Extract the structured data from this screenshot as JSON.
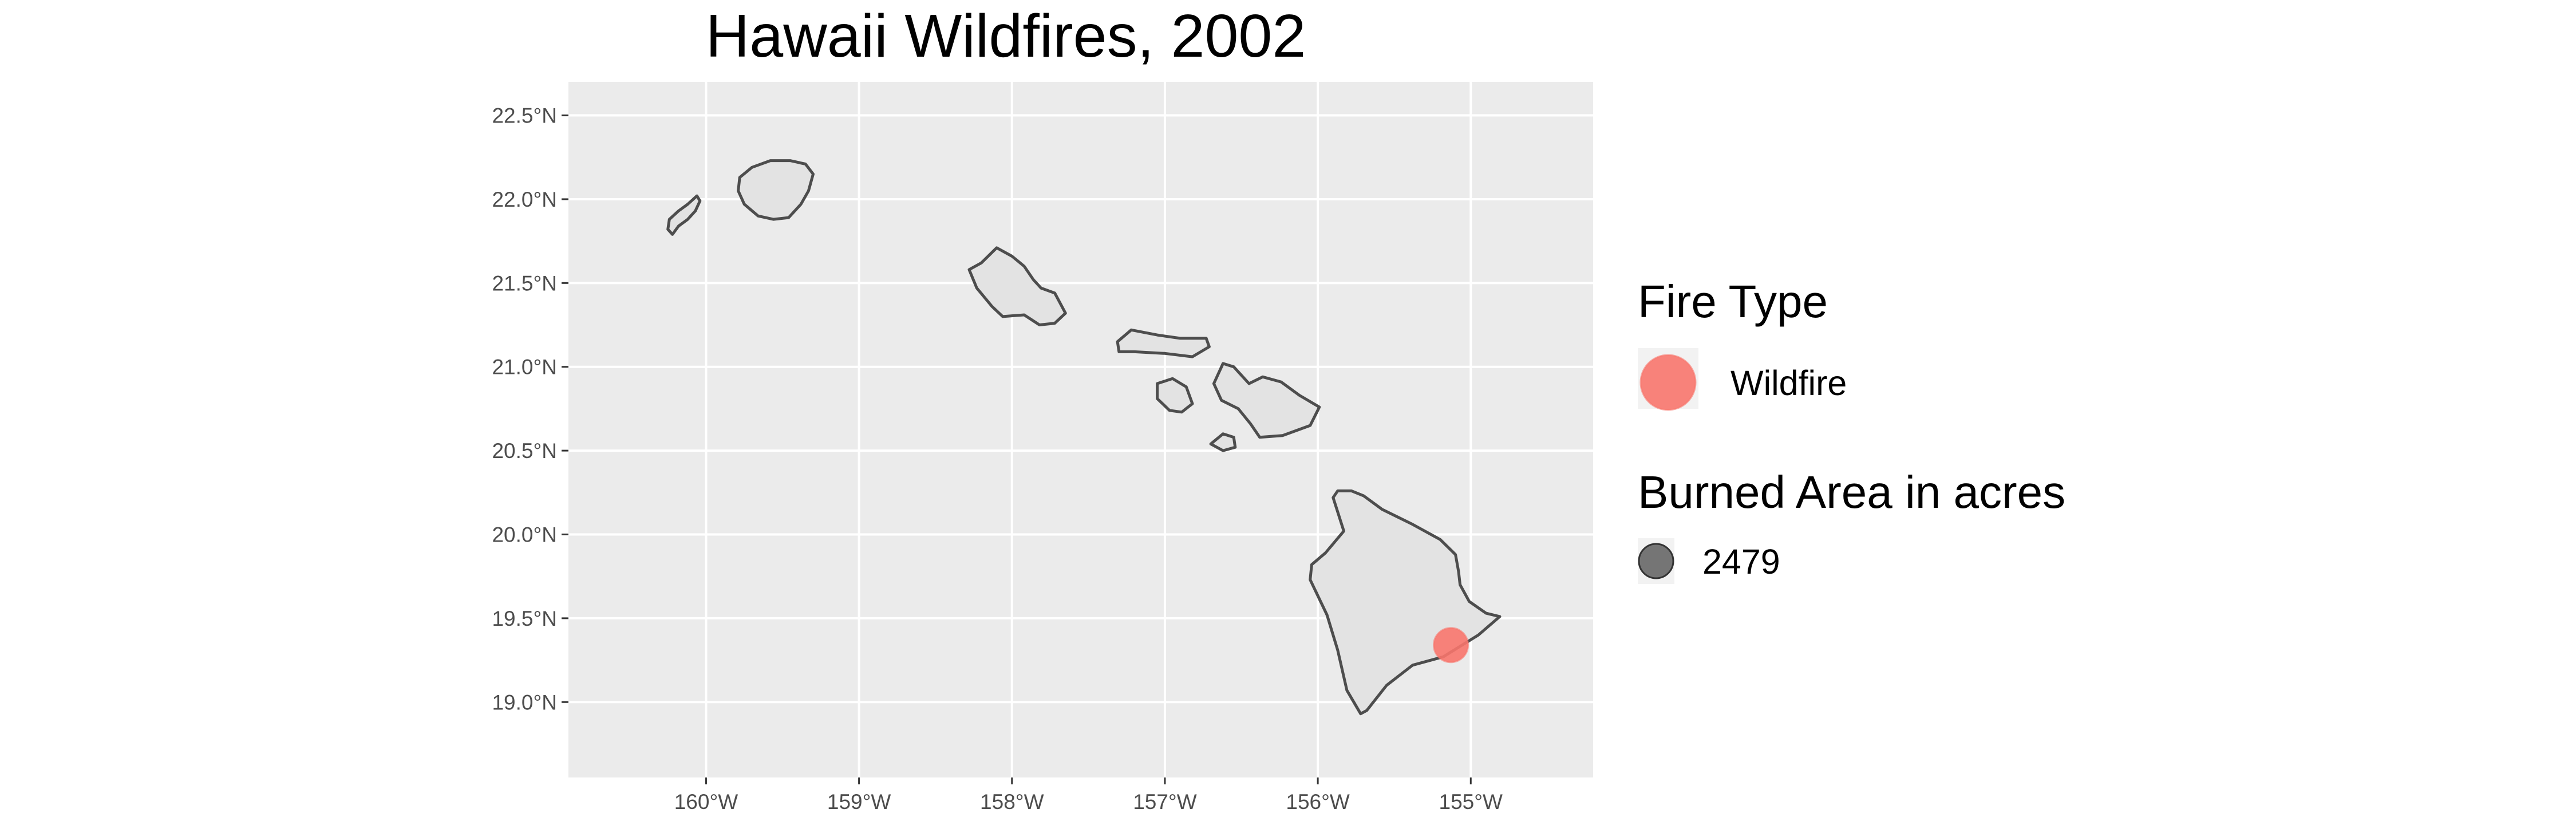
{
  "title": "Hawaii Wildfires, 2002",
  "map": {
    "type": "point-map",
    "x_range": [
      -160.9,
      -154.2
    ],
    "y_range": [
      18.55,
      22.7
    ],
    "x_ticks": [
      -160,
      -159,
      -158,
      -157,
      -156,
      -155
    ],
    "y_ticks": [
      19.0,
      19.5,
      20.0,
      20.5,
      21.0,
      21.5,
      22.0,
      22.5
    ],
    "x_tick_labels": [
      "160°W",
      "159°W",
      "158°W",
      "157°W",
      "156°W",
      "155°W"
    ],
    "y_tick_labels": [
      "19.0°N",
      "19.5°N",
      "20.0°N",
      "20.5°N",
      "21.0°N",
      "21.5°N",
      "22.0°N",
      "22.5°N"
    ],
    "grid": true,
    "colors": {
      "panel_background": "#ebebeb",
      "land_fill": "#e3e3e3",
      "coastline": "#4d4d4d",
      "gridline": "#ffffff",
      "wildfire": "#f8766d",
      "size_key": "#555555"
    },
    "islands": [
      "Niihau",
      "Kauai",
      "Oahu",
      "Molokai",
      "Lanai",
      "Maui",
      "Kahoolawe",
      "Hawaii"
    ],
    "points": [
      {
        "lon": -155.13,
        "lat": 19.34,
        "fire_type": "Wildfire",
        "burned_acres": 2479
      }
    ]
  },
  "legend": {
    "placement": "right",
    "fire_type": {
      "title": "Fire Type",
      "items": [
        {
          "label": "Wildfire",
          "color": "#f8766d"
        }
      ]
    },
    "burned_area": {
      "title": "Burned Area in acres",
      "items": [
        {
          "label": "2479"
        }
      ]
    }
  }
}
